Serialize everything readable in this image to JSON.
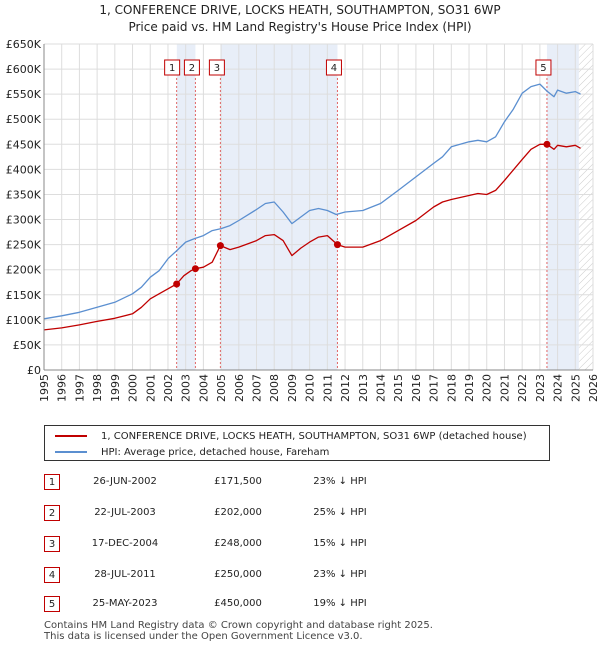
{
  "title_line1": "1, CONFERENCE DRIVE, LOCKS HEATH, SOUTHAMPTON, SO31 6WP",
  "title_line2": "Price paid vs. HM Land Registry's House Price Index (HPI)",
  "legend": {
    "property": "1, CONFERENCE DRIVE, LOCKS HEATH, SOUTHAMPTON, SO31 6WP (detached house)",
    "hpi": "HPI: Average price, detached house, Fareham"
  },
  "events": [
    {
      "num": "1",
      "date": "26-JUN-2002",
      "price": "£171,500",
      "hpi": "23% ↓ HPI"
    },
    {
      "num": "2",
      "date": "22-JUL-2003",
      "price": "£202,000",
      "hpi": "25% ↓ HPI"
    },
    {
      "num": "3",
      "date": "17-DEC-2004",
      "price": "£248,000",
      "hpi": "15% ↓ HPI"
    },
    {
      "num": "4",
      "date": "28-JUL-2011",
      "price": "£250,000",
      "hpi": "23% ↓ HPI"
    },
    {
      "num": "5",
      "date": "25-MAY-2023",
      "price": "£450,000",
      "hpi": "19% ↓ HPI"
    }
  ],
  "footer_line1": "Contains HM Land Registry data © Crown copyright and database right 2025.",
  "footer_line2": "This data is licensed under the Open Government Licence v3.0.",
  "colors": {
    "property": "#c00000",
    "hpi": "#5b8fd0",
    "shade": "#e8eef8",
    "grid": "#dddddd"
  },
  "chart_data": {
    "type": "line",
    "xlim": [
      1995,
      2026
    ],
    "ylim": [
      0,
      650000
    ],
    "y_ticks": [
      0,
      50000,
      100000,
      150000,
      200000,
      250000,
      300000,
      350000,
      400000,
      450000,
      500000,
      550000,
      600000,
      650000
    ],
    "y_tick_labels": [
      "£0",
      "£50K",
      "£100K",
      "£150K",
      "£200K",
      "£250K",
      "£300K",
      "£350K",
      "£400K",
      "£450K",
      "£500K",
      "£550K",
      "£600K",
      "£650K"
    ],
    "x_ticks": [
      1995,
      1996,
      1997,
      1998,
      1999,
      2000,
      2001,
      2002,
      2003,
      2004,
      2005,
      2006,
      2007,
      2008,
      2009,
      2010,
      2011,
      2012,
      2013,
      2014,
      2015,
      2016,
      2017,
      2018,
      2019,
      2020,
      2021,
      2022,
      2023,
      2024,
      2025,
      2026
    ],
    "x_tick_labels": [
      "1995",
      "1996",
      "1997",
      "1998",
      "1999",
      "2000",
      "2001",
      "2002",
      "2003",
      "2004",
      "2005",
      "2006",
      "2007",
      "2008",
      "2009",
      "2010",
      "2011",
      "2012",
      "2013",
      "2014",
      "2015",
      "2016",
      "2017",
      "2018",
      "2019",
      "2020",
      "2021",
      "2022",
      "2023",
      "2024",
      "2025",
      "2026"
    ],
    "shaded_ranges": [
      [
        2002.5,
        2003.55
      ],
      [
        2004.96,
        2011.57
      ],
      [
        2023.4,
        2025.2
      ]
    ],
    "hatched_range": [
      2025.2,
      2026
    ],
    "markers": [
      {
        "label": "1",
        "x": 2002.49,
        "y": 171500
      },
      {
        "label": "2",
        "x": 2003.55,
        "y": 202000
      },
      {
        "label": "3",
        "x": 2004.96,
        "y": 248000
      },
      {
        "label": "4",
        "x": 2011.57,
        "y": 250000
      },
      {
        "label": "5",
        "x": 2023.4,
        "y": 450000
      }
    ],
    "series": [
      {
        "name": "1, CONFERENCE DRIVE, LOCKS HEATH, SOUTHAMPTON, SO31 6WP (detached house)",
        "x": [
          1995,
          1996,
          1997,
          1998,
          1999,
          2000,
          2000.5,
          2001,
          2001.5,
          2002,
          2002.49,
          2002.9,
          2003.3,
          2003.55,
          2004,
          2004.5,
          2004.96,
          2005.5,
          2006,
          2007,
          2007.5,
          2008,
          2008.5,
          2009,
          2009.5,
          2010,
          2010.5,
          2011,
          2011.57,
          2012,
          2013,
          2014,
          2015,
          2016,
          2017,
          2017.5,
          2018,
          2019,
          2019.5,
          2020,
          2020.5,
          2021,
          2022,
          2022.5,
          2023,
          2023.4,
          2023.8,
          2024,
          2024.5,
          2025,
          2025.3
        ],
        "y": [
          80000,
          84000,
          90000,
          97000,
          103000,
          112000,
          125000,
          142000,
          152000,
          162000,
          171500,
          188000,
          198000,
          202000,
          205000,
          215000,
          248000,
          240000,
          245000,
          258000,
          268000,
          270000,
          258000,
          228000,
          243000,
          255000,
          265000,
          268000,
          250000,
          245000,
          245000,
          258000,
          278000,
          298000,
          325000,
          335000,
          340000,
          348000,
          352000,
          350000,
          358000,
          378000,
          420000,
          440000,
          450000,
          450000,
          440000,
          448000,
          445000,
          448000,
          442000
        ]
      },
      {
        "name": "HPI: Average price, detached house, Fareham",
        "x": [
          1995,
          1996,
          1997,
          1998,
          1999,
          2000,
          2000.5,
          2001,
          2001.5,
          2002,
          2002.5,
          2003,
          2003.5,
          2004,
          2004.5,
          2005,
          2005.5,
          2006,
          2007,
          2007.5,
          2008,
          2008.5,
          2009,
          2009.5,
          2010,
          2010.5,
          2011,
          2011.5,
          2012,
          2013,
          2014,
          2015,
          2016,
          2017,
          2017.5,
          2018,
          2019,
          2019.5,
          2020,
          2020.5,
          2021,
          2021.5,
          2022,
          2022.5,
          2023,
          2023.4,
          2023.8,
          2024,
          2024.5,
          2025,
          2025.3
        ],
        "y": [
          102000,
          108000,
          115000,
          125000,
          135000,
          152000,
          165000,
          185000,
          198000,
          222000,
          238000,
          255000,
          262000,
          268000,
          278000,
          282000,
          288000,
          298000,
          320000,
          332000,
          335000,
          315000,
          292000,
          305000,
          318000,
          322000,
          318000,
          310000,
          315000,
          318000,
          332000,
          358000,
          385000,
          412000,
          425000,
          445000,
          455000,
          458000,
          455000,
          465000,
          495000,
          520000,
          552000,
          565000,
          570000,
          556000,
          545000,
          558000,
          552000,
          555000,
          550000
        ]
      }
    ]
  }
}
